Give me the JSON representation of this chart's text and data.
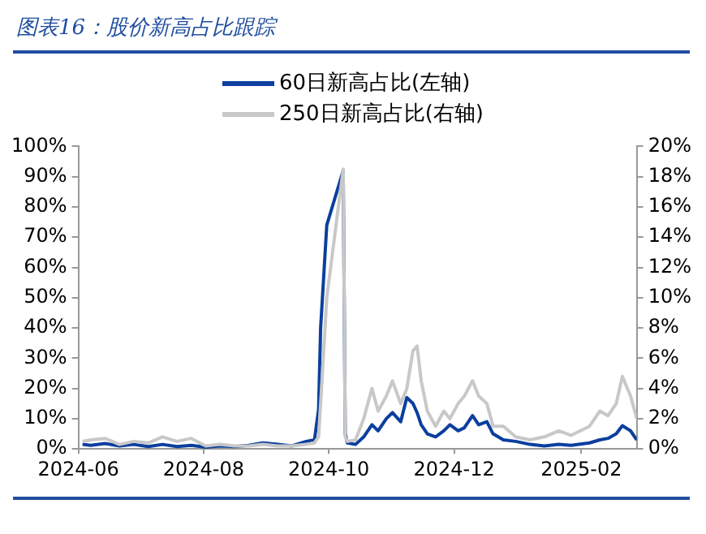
{
  "chart_data": {
    "type": "line",
    "title": "图表16：股价新高占比跟踪",
    "legend": "top",
    "grid": false,
    "marker": "none",
    "line_style": "solid",
    "xlim": [
      "2024-06-01",
      "2025-02-28"
    ],
    "xticks": [
      {
        "value": "2024-06-01",
        "label": "2024-06"
      },
      {
        "value": "2024-08-01",
        "label": "2024-08"
      },
      {
        "value": "2024-10-01",
        "label": "2024-10"
      },
      {
        "value": "2024-12-01",
        "label": "2024-12"
      },
      {
        "value": "2025-02-01",
        "label": "2025-02"
      }
    ],
    "ylim": [
      0,
      100
    ],
    "yticks": [
      {
        "value": 0,
        "label": "0%"
      },
      {
        "value": 10,
        "label": "10%"
      },
      {
        "value": 20,
        "label": "20%"
      },
      {
        "value": 30,
        "label": "30%"
      },
      {
        "value": 40,
        "label": "40%"
      },
      {
        "value": 50,
        "label": "50%"
      },
      {
        "value": 60,
        "label": "60%"
      },
      {
        "value": 70,
        "label": "70%"
      },
      {
        "value": 80,
        "label": "80%"
      },
      {
        "value": 90,
        "label": "90%"
      },
      {
        "value": 100,
        "label": "100%"
      }
    ],
    "y2lim": [
      0,
      20
    ],
    "y2ticks": [
      {
        "value": 0,
        "label": "0%"
      },
      {
        "value": 2,
        "label": "2%"
      },
      {
        "value": 4,
        "label": "4%"
      },
      {
        "value": 6,
        "label": "6%"
      },
      {
        "value": 8,
        "label": "8%"
      },
      {
        "value": 10,
        "label": "10%"
      },
      {
        "value": 12,
        "label": "12%"
      },
      {
        "value": 14,
        "label": "14%"
      },
      {
        "value": 16,
        "label": "16%"
      },
      {
        "value": 18,
        "label": "18%"
      },
      {
        "value": 20,
        "label": "20%"
      }
    ],
    "x": [
      "2024-06-03",
      "2024-06-07",
      "2024-06-14",
      "2024-06-21",
      "2024-06-28",
      "2024-07-05",
      "2024-07-12",
      "2024-07-19",
      "2024-07-26",
      "2024-08-02",
      "2024-08-09",
      "2024-08-16",
      "2024-08-23",
      "2024-08-30",
      "2024-09-06",
      "2024-09-13",
      "2024-09-20",
      "2024-09-24",
      "2024-09-26",
      "2024-09-27",
      "2024-09-30",
      "2024-10-08",
      "2024-10-09",
      "2024-10-10",
      "2024-10-14",
      "2024-10-18",
      "2024-10-22",
      "2024-10-25",
      "2024-10-29",
      "2024-11-01",
      "2024-11-05",
      "2024-11-08",
      "2024-11-11",
      "2024-11-13",
      "2024-11-15",
      "2024-11-18",
      "2024-11-22",
      "2024-11-26",
      "2024-11-29",
      "2024-12-03",
      "2024-12-06",
      "2024-12-10",
      "2024-12-13",
      "2024-12-17",
      "2024-12-20",
      "2024-12-25",
      "2024-12-31",
      "2025-01-07",
      "2025-01-14",
      "2025-01-21",
      "2025-01-27",
      "2025-02-05",
      "2025-02-10",
      "2025-02-14",
      "2025-02-18",
      "2025-02-21",
      "2025-02-25",
      "2025-02-28"
    ],
    "series": [
      {
        "name": "60日新高占比(左轴)",
        "color": "#0b3f9e",
        "axis": "y",
        "values": [
          1.5,
          1.2,
          1.8,
          1.0,
          1.5,
          0.8,
          1.5,
          0.8,
          1.2,
          0.6,
          1.0,
          0.8,
          1.2,
          2.0,
          1.5,
          1.0,
          2.5,
          3,
          13,
          40,
          74,
          92,
          5,
          2,
          1.5,
          4,
          8,
          6,
          10,
          12,
          9,
          17,
          15,
          12,
          8,
          5,
          4,
          6,
          8,
          6,
          7,
          11,
          8,
          9,
          5,
          3,
          2.5,
          1.5,
          1,
          1.5,
          1.2,
          2,
          3,
          3.5,
          5,
          7.7,
          6,
          3
        ]
      },
      {
        "name": "250日新高占比(右轴)",
        "color": "#c8c8c8",
        "axis": "y2",
        "values": [
          0.5,
          0.6,
          0.7,
          0.3,
          0.5,
          0.4,
          0.8,
          0.5,
          0.7,
          0.2,
          0.3,
          0.2,
          0.2,
          0.3,
          0.2,
          0.2,
          0.3,
          0.4,
          0.8,
          3,
          10,
          18.5,
          0.8,
          0.5,
          0.6,
          2,
          4,
          2.5,
          3.5,
          4.5,
          3,
          4,
          6.5,
          6.8,
          4.5,
          2.5,
          1.5,
          2.5,
          2,
          3,
          3.5,
          4.5,
          3.5,
          3,
          1.5,
          1.5,
          0.8,
          0.6,
          0.8,
          1.2,
          0.9,
          1.5,
          2.5,
          2.2,
          3,
          4.8,
          3.5,
          2
        ]
      }
    ]
  }
}
